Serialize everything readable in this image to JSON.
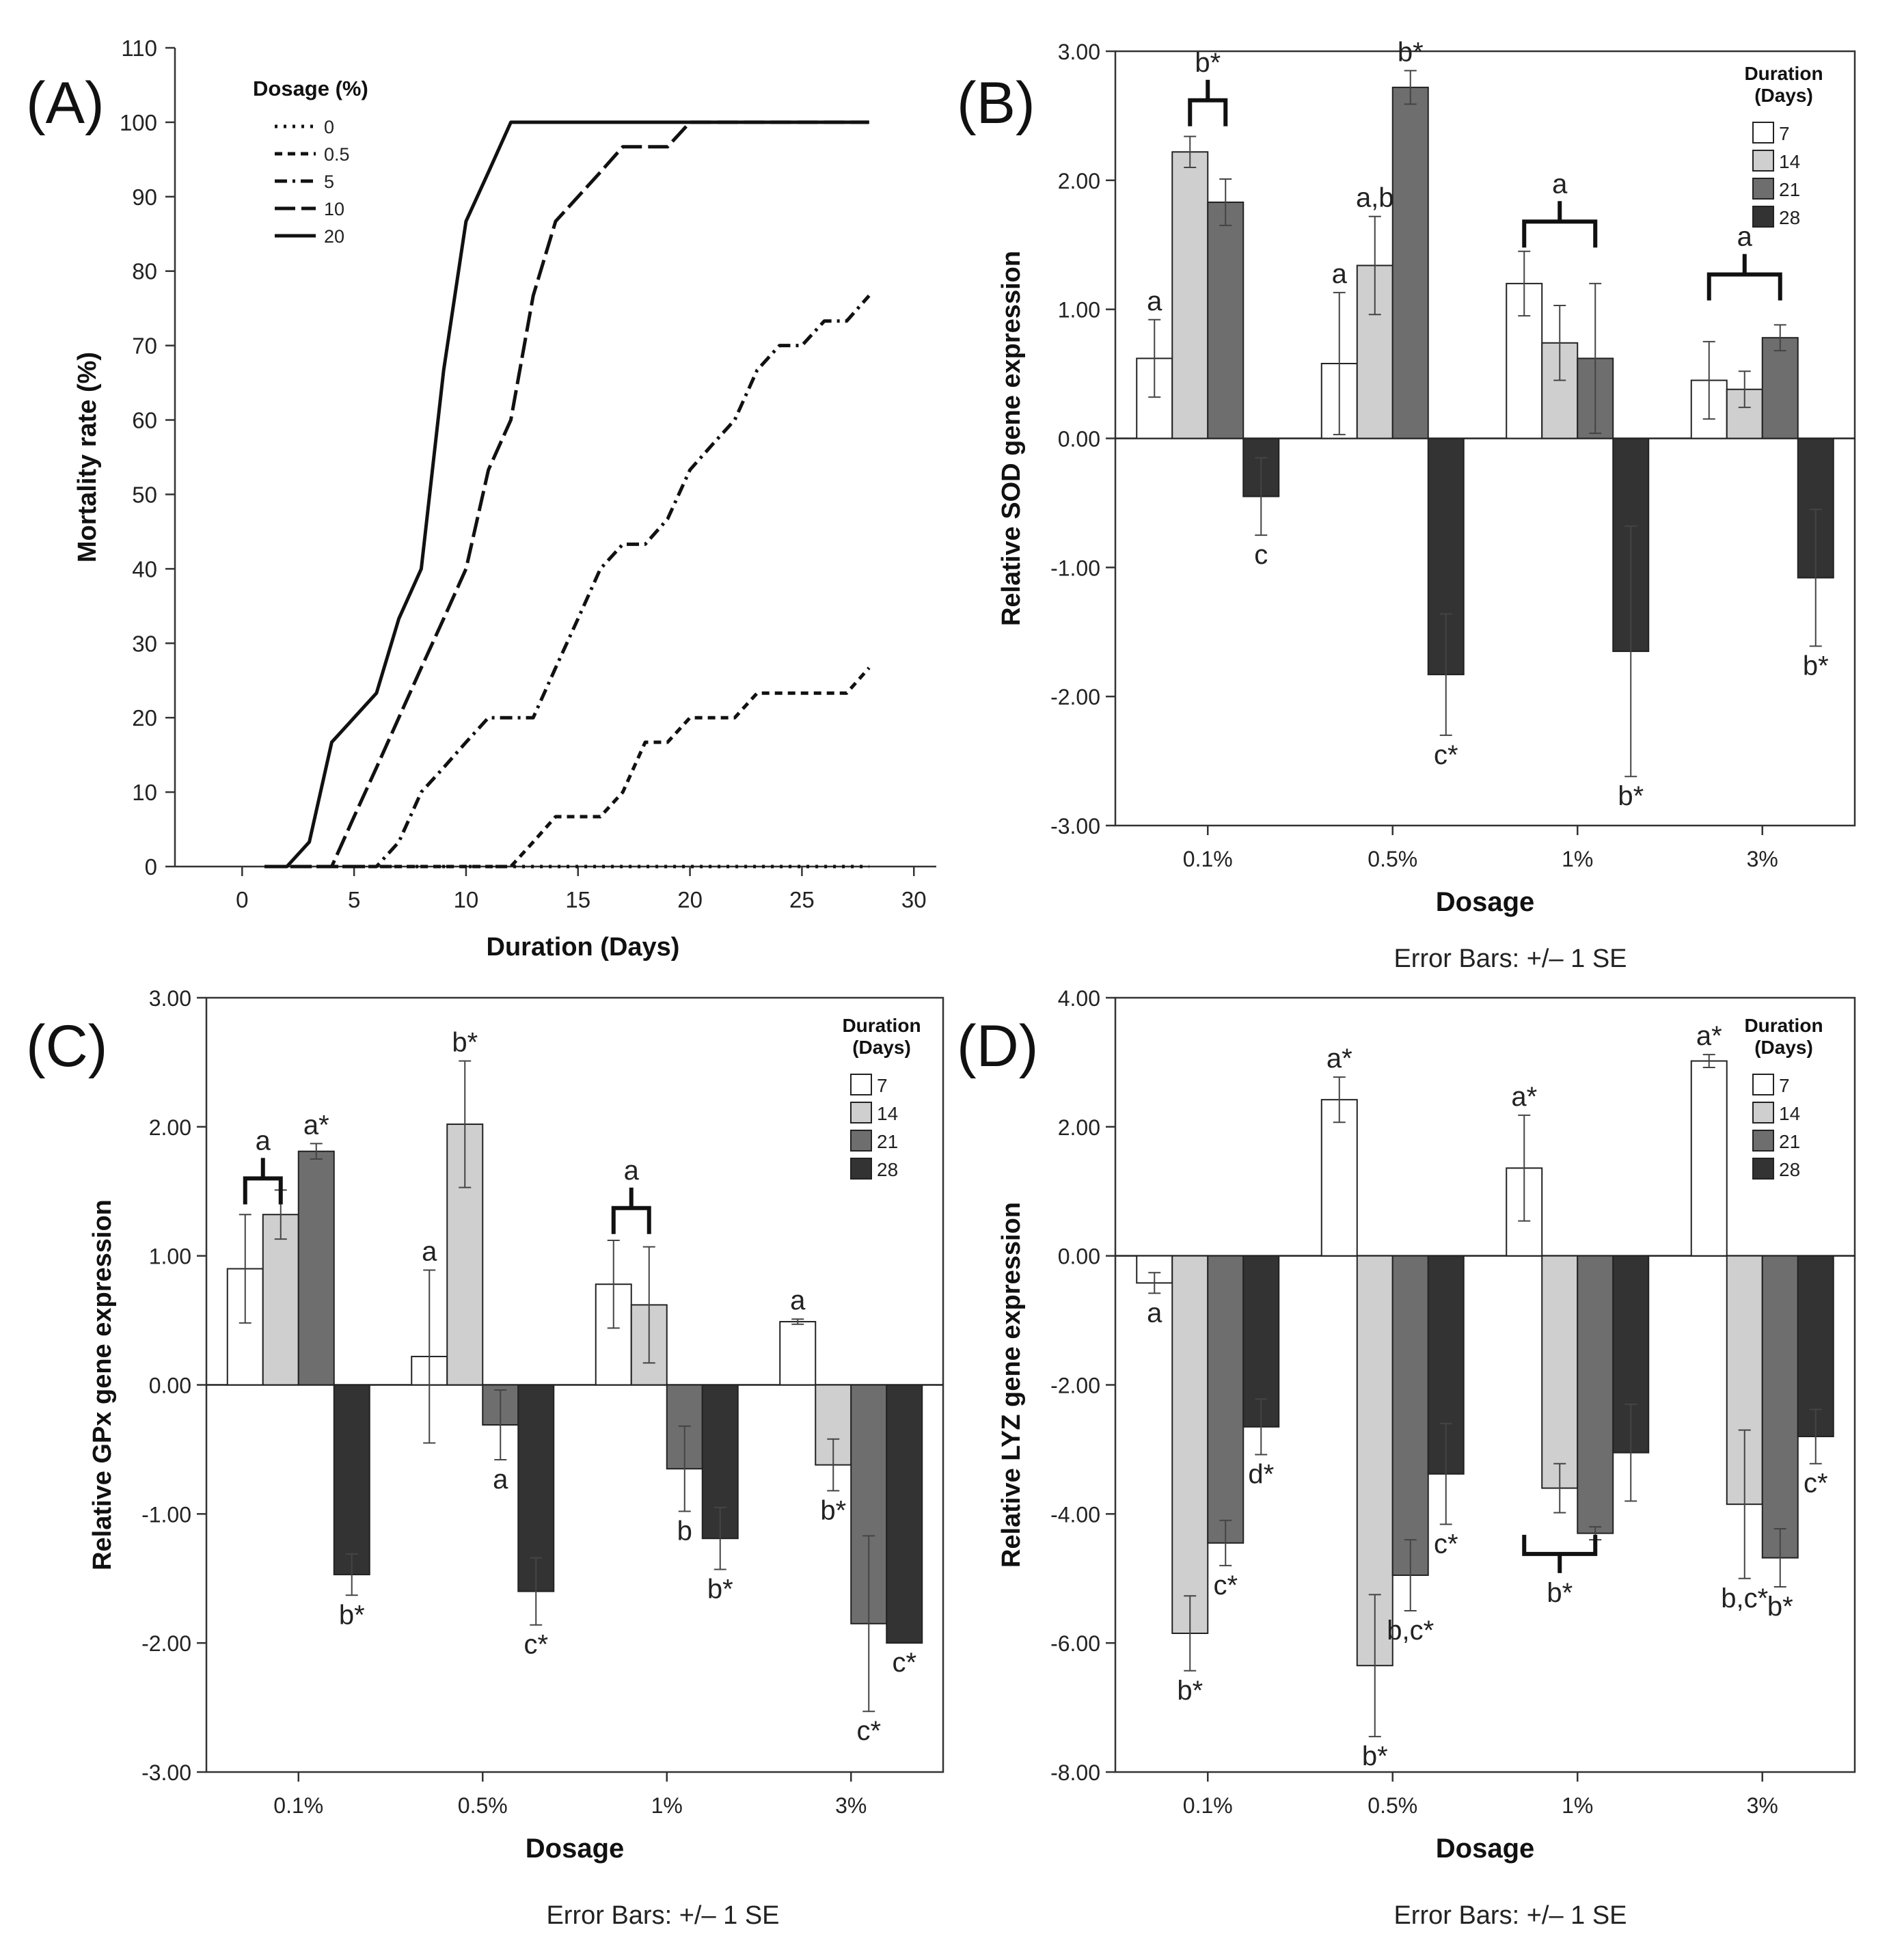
{
  "figure": {
    "bar_legend_title": [
      "Duration",
      "(Days)"
    ],
    "bar_legend_items": [
      "7",
      "14",
      "21",
      "28"
    ],
    "bar_colors": [
      "#ffffff",
      "#cfcfcf",
      "#6e6e6e",
      "#333333"
    ],
    "error_bar_note": "Error Bars: +/– 1 SE"
  },
  "chart_data": [
    {
      "panel": "(A)",
      "type": "line",
      "xlabel": "Duration (Days)",
      "ylabel": "Mortality rate (%)",
      "xlim": [
        -3,
        31
      ],
      "ylim": [
        0,
        110
      ],
      "xticks": [
        0,
        5,
        10,
        15,
        20,
        25,
        30
      ],
      "yticks": [
        0,
        10,
        20,
        30,
        40,
        50,
        60,
        70,
        80,
        90,
        100,
        110
      ],
      "legend_title": "Dosage (%)",
      "series": [
        {
          "name": "0",
          "dash": "dot",
          "points": [
            [
              1,
              0
            ],
            [
              28,
              0
            ]
          ]
        },
        {
          "name": "0.5",
          "dash": "shortdash",
          "points": [
            [
              1,
              0
            ],
            [
              12,
              0
            ],
            [
              13,
              3.3
            ],
            [
              14,
              6.7
            ],
            [
              16,
              6.7
            ],
            [
              17,
              10
            ],
            [
              18,
              16.7
            ],
            [
              19,
              16.7
            ],
            [
              20,
              20
            ],
            [
              22,
              20
            ],
            [
              23,
              23.3
            ],
            [
              27,
              23.3
            ],
            [
              28,
              26.7
            ]
          ]
        },
        {
          "name": "5",
          "dash": "dashdot",
          "points": [
            [
              1,
              0
            ],
            [
              6,
              0
            ],
            [
              7,
              3.3
            ],
            [
              8,
              10
            ],
            [
              9,
              13.3
            ],
            [
              10,
              16.7
            ],
            [
              11,
              20
            ],
            [
              13,
              20
            ],
            [
              14,
              26.7
            ],
            [
              15,
              33.3
            ],
            [
              16,
              40
            ],
            [
              17,
              43.3
            ],
            [
              18,
              43.3
            ],
            [
              19,
              46.7
            ],
            [
              20,
              53.3
            ],
            [
              21,
              56.7
            ],
            [
              22,
              60
            ],
            [
              23,
              66.7
            ],
            [
              24,
              70
            ],
            [
              25,
              70
            ],
            [
              26,
              73.3
            ],
            [
              27,
              73.3
            ],
            [
              28,
              76.7
            ]
          ]
        },
        {
          "name": "10",
          "dash": "longdash",
          "points": [
            [
              1,
              0
            ],
            [
              4,
              0
            ],
            [
              5,
              6.7
            ],
            [
              6,
              13.3
            ],
            [
              7,
              20
            ],
            [
              8,
              26.7
            ],
            [
              9,
              33.3
            ],
            [
              10,
              40
            ],
            [
              11,
              53.3
            ],
            [
              12,
              60
            ],
            [
              13,
              76.7
            ],
            [
              14,
              86.7
            ],
            [
              15,
              90
            ],
            [
              16,
              93.3
            ],
            [
              17,
              96.7
            ],
            [
              18,
              96.7
            ],
            [
              19,
              96.7
            ],
            [
              20,
              100
            ],
            [
              28,
              100
            ]
          ]
        },
        {
          "name": "20",
          "dash": "solid",
          "points": [
            [
              1,
              0
            ],
            [
              2,
              0
            ],
            [
              3,
              3.3
            ],
            [
              4,
              16.7
            ],
            [
              5,
              20
            ],
            [
              6,
              23.3
            ],
            [
              7,
              33.3
            ],
            [
              8,
              40
            ],
            [
              9,
              66.7
            ],
            [
              10,
              86.7
            ],
            [
              11,
              93.3
            ],
            [
              12,
              100
            ],
            [
              28,
              100
            ]
          ]
        }
      ]
    },
    {
      "panel": "(B)",
      "type": "bar",
      "xlabel": "Dosage",
      "ylabel": "Relative SOD gene expression",
      "ylim": [
        -3,
        3
      ],
      "ytick_step": 1,
      "categories": [
        "0.1%",
        "0.5%",
        "1%",
        "3%"
      ],
      "series": [
        {
          "name": "7",
          "values": [
            0.62,
            0.58,
            1.2,
            0.45
          ],
          "errors": [
            0.3,
            0.55,
            0.25,
            0.3
          ],
          "labels": [
            "a",
            "a",
            "",
            ""
          ]
        },
        {
          "name": "14",
          "values": [
            2.22,
            1.34,
            0.74,
            0.38
          ],
          "errors": [
            0.12,
            0.38,
            0.29,
            0.14
          ],
          "labels": [
            "",
            "a,b",
            "",
            ""
          ]
        },
        {
          "name": "21",
          "values": [
            1.83,
            2.72,
            0.62,
            0.78
          ],
          "errors": [
            0.18,
            0.13,
            0.58,
            0.1
          ],
          "labels": [
            "",
            "b*",
            "",
            ""
          ]
        },
        {
          "name": "28",
          "values": [
            -0.45,
            -1.83,
            -1.65,
            -1.08
          ],
          "errors": [
            0.3,
            0.47,
            0.97,
            0.53
          ],
          "labels": [
            "c",
            "c*",
            "b*",
            "b*"
          ]
        }
      ],
      "brackets": [
        {
          "category": 0,
          "from": 1,
          "to": 2,
          "top": 2.62,
          "label": "b*"
        },
        {
          "category": 2,
          "from": 0,
          "to": 2,
          "top": 1.68,
          "label": "a"
        },
        {
          "category": 3,
          "from": 0,
          "to": 2,
          "top": 1.27,
          "label": "a"
        }
      ]
    },
    {
      "panel": "(C)",
      "type": "bar",
      "xlabel": "Dosage",
      "ylabel": "Relative GPx gene expression",
      "ylim": [
        -3,
        3
      ],
      "ytick_step": 1,
      "categories": [
        "0.1%",
        "0.5%",
        "1%",
        "3%"
      ],
      "series": [
        {
          "name": "7",
          "values": [
            0.9,
            0.22,
            0.78,
            0.49
          ],
          "errors": [
            0.42,
            0.67,
            0.34,
            0.02
          ],
          "labels": [
            "",
            "a",
            "",
            "a"
          ]
        },
        {
          "name": "14",
          "values": [
            1.32,
            2.02,
            0.62,
            -0.62
          ],
          "errors": [
            0.19,
            0.49,
            0.45,
            0.2
          ],
          "labels": [
            "",
            "b*",
            "",
            "b*"
          ]
        },
        {
          "name": "21",
          "values": [
            1.81,
            -0.31,
            -0.65,
            -1.85
          ],
          "errors": [
            0.06,
            0.27,
            0.33,
            0.68
          ],
          "labels": [
            "a*",
            "a",
            "b",
            "c*"
          ]
        },
        {
          "name": "28",
          "values": [
            -1.47,
            -1.6,
            -1.19,
            -2.0
          ],
          "errors": [
            0.16,
            0.26,
            0.24,
            0.0
          ],
          "labels": [
            "b*",
            "c*",
            "b*",
            "c*"
          ]
        }
      ],
      "brackets": [
        {
          "category": 0,
          "from": 0,
          "to": 1,
          "top": 1.6,
          "label": "a"
        },
        {
          "category": 2,
          "from": 0,
          "to": 1,
          "top": 1.37,
          "label": "a"
        }
      ]
    },
    {
      "panel": "(D)",
      "type": "bar",
      "xlabel": "Dosage",
      "ylabel": "Relative LYZ gene expression",
      "ylim": [
        -8,
        4
      ],
      "ytick_step": 2,
      "categories": [
        "0.1%",
        "0.5%",
        "1%",
        "3%"
      ],
      "series": [
        {
          "name": "7",
          "values": [
            -0.42,
            2.42,
            1.36,
            3.02
          ],
          "errors": [
            0.16,
            0.35,
            0.82,
            0.1
          ],
          "labels": [
            "a",
            "a*",
            "a*",
            "a*"
          ]
        },
        {
          "name": "14",
          "values": [
            -5.85,
            -6.35,
            -3.6,
            -3.85
          ],
          "errors": [
            0.58,
            1.1,
            0.38,
            1.15
          ],
          "labels": [
            "b*",
            "b*",
            "",
            "b,c*"
          ]
        },
        {
          "name": "21",
          "values": [
            -4.45,
            -4.95,
            -4.3,
            -4.68
          ],
          "errors": [
            0.35,
            0.55,
            0.1,
            0.45
          ],
          "labels": [
            "c*",
            "b,c*",
            "",
            "b*"
          ]
        },
        {
          "name": "28",
          "values": [
            -2.65,
            -3.38,
            -3.05,
            -2.8
          ],
          "errors": [
            0.43,
            0.78,
            0.75,
            0.42
          ],
          "labels": [
            "d*",
            "c*",
            "",
            "c*"
          ]
        }
      ],
      "brackets": [
        {
          "category": 2,
          "from": 0,
          "to": 2,
          "top": -4.62,
          "label": "b*",
          "downward": true
        }
      ]
    }
  ]
}
